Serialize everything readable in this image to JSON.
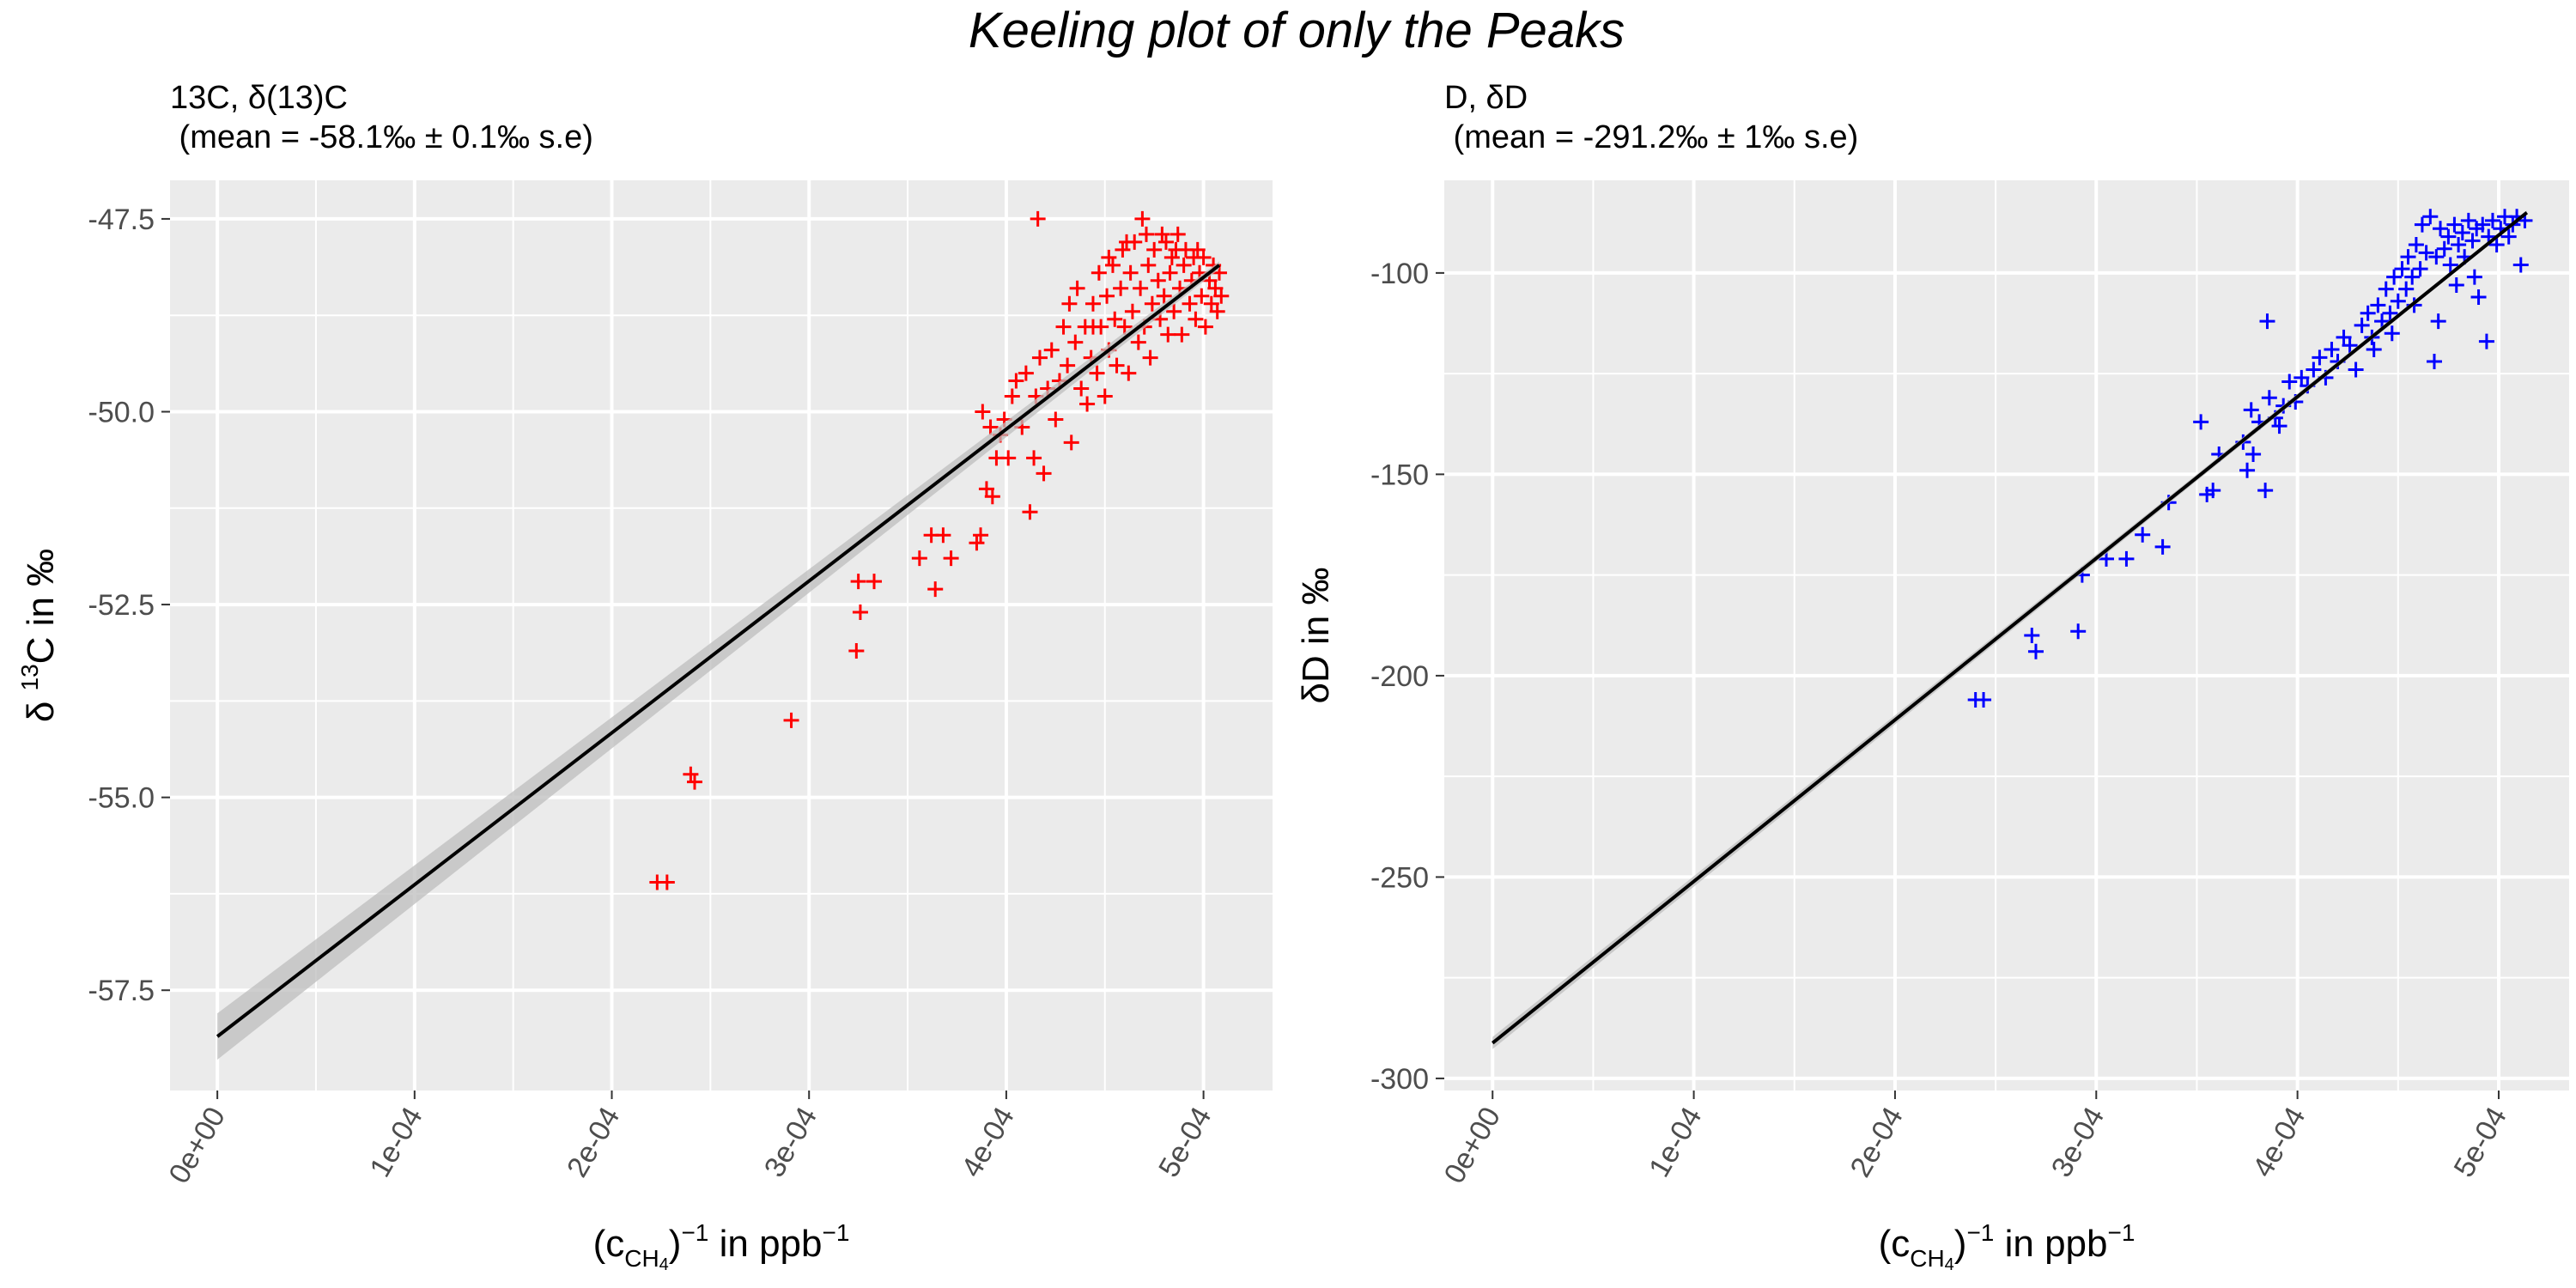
{
  "title": "Keeling plot of only the Peaks",
  "colors": {
    "panel_bg": "#EBEBEB",
    "grid": "#FFFFFF",
    "axis_text": "#4D4D4D",
    "fit_line": "#000000",
    "confidence_band": "#BDBDBD",
    "c13_points": "#FF0000",
    "d_points": "#0000FF"
  },
  "chart_data": [
    {
      "type": "scatter",
      "marker": "plus",
      "subtitle_line1": "13C, δ(13)C",
      "subtitle_line2": " (mean = -58.1‰ ± 0.1‰ s.e)",
      "xlabel": "(cCH4)−1 in ppb−1",
      "ylabel": "δ13C in ‰",
      "xlim": [
        -2.4e-05,
        0.000535
      ],
      "ylim": [
        -58.8,
        -47.0
      ],
      "x_ticks": [
        0,
        0.0001,
        0.0002,
        0.0003,
        0.0004,
        0.0005
      ],
      "x_tick_labels": [
        "0e+00",
        "1e-04",
        "2e-04",
        "3e-04",
        "4e-04",
        "5e-04"
      ],
      "y_ticks": [
        -57.5,
        -55.0,
        -52.5,
        -50.0,
        -47.5
      ],
      "y_tick_labels": [
        "-57.5",
        "-55.0",
        "-52.5",
        "-50.0",
        "-47.5"
      ],
      "grid": true,
      "point_color": "#FF0000",
      "fit": {
        "x": [
          0,
          0.000508
        ],
        "y": [
          -58.1,
          -48.1
        ]
      },
      "band_halfwidth": [
        0.3,
        0.05
      ],
      "points": [
        [
          0.000223,
          -56.1
        ],
        [
          0.000228,
          -56.1
        ],
        [
          0.00024,
          -54.7
        ],
        [
          0.000242,
          -54.8
        ],
        [
          0.000291,
          -54.0
        ],
        [
          0.000324,
          -53.1
        ],
        [
          0.000325,
          -52.2
        ],
        [
          0.000326,
          -52.6
        ],
        [
          0.000333,
          -52.2
        ],
        [
          0.000356,
          -51.9
        ],
        [
          0.000362,
          -51.6
        ],
        [
          0.000364,
          -52.3
        ],
        [
          0.000368,
          -51.6
        ],
        [
          0.000372,
          -51.9
        ],
        [
          0.000385,
          -51.7
        ],
        [
          0.000387,
          -51.6
        ],
        [
          0.00039,
          -51.0
        ],
        [
          0.000393,
          -51.1
        ],
        [
          0.000395,
          -50.6
        ],
        [
          0.000397,
          -50.3
        ],
        [
          0.000388,
          -50.0
        ],
        [
          0.000392,
          -50.2
        ],
        [
          0.000399,
          -50.1
        ],
        [
          0.000401,
          -50.6
        ],
        [
          0.000403,
          -49.8
        ],
        [
          0.000405,
          -49.6
        ],
        [
          0.000408,
          -50.2
        ],
        [
          0.00041,
          -49.5
        ],
        [
          0.000412,
          -51.3
        ],
        [
          0.000414,
          -50.6
        ],
        [
          0.000415,
          -49.8
        ],
        [
          0.000417,
          -49.3
        ],
        [
          0.000416,
          -47.5
        ],
        [
          0.000419,
          -50.8
        ],
        [
          0.000421,
          -49.7
        ],
        [
          0.000423,
          -49.2
        ],
        [
          0.000425,
          -50.1
        ],
        [
          0.000427,
          -49.6
        ],
        [
          0.000429,
          -48.9
        ],
        [
          0.000431,
          -49.4
        ],
        [
          0.000433,
          -50.4
        ],
        [
          0.000435,
          -49.1
        ],
        [
          0.000436,
          -48.4
        ],
        [
          0.000438,
          -49.7
        ],
        [
          0.00044,
          -48.9
        ],
        [
          0.000441,
          -49.9
        ],
        [
          0.000443,
          -49.3
        ],
        [
          0.000444,
          -48.6
        ],
        [
          0.000446,
          -49.5
        ],
        [
          0.000447,
          -48.2
        ],
        [
          0.000448,
          -48.9
        ],
        [
          0.00045,
          -49.8
        ],
        [
          0.000451,
          -48.5
        ],
        [
          0.000452,
          -49.2
        ],
        [
          0.000454,
          -48.1
        ],
        [
          0.000455,
          -48.8
        ],
        [
          0.000456,
          -49.4
        ],
        [
          0.000458,
          -48.4
        ],
        [
          0.000459,
          -47.9
        ],
        [
          0.00046,
          -48.9
        ],
        [
          0.000462,
          -49.5
        ],
        [
          0.000463,
          -48.2
        ],
        [
          0.000464,
          -48.7
        ],
        [
          0.000465,
          -47.8
        ],
        [
          0.000467,
          -49.1
        ],
        [
          0.000468,
          -48.4
        ],
        [
          0.000469,
          -47.5
        ],
        [
          0.00047,
          -48.9
        ],
        [
          0.000472,
          -48.1
        ],
        [
          0.000473,
          -49.3
        ],
        [
          0.000474,
          -48.6
        ],
        [
          0.000475,
          -47.9
        ],
        [
          0.000477,
          -48.3
        ],
        [
          0.000478,
          -48.8
        ],
        [
          0.000479,
          -47.7
        ],
        [
          0.00048,
          -48.5
        ],
        [
          0.000482,
          -49.0
        ],
        [
          0.000483,
          -48.2
        ],
        [
          0.000484,
          -48.0
        ],
        [
          0.000485,
          -48.7
        ],
        [
          0.000486,
          -47.9
        ],
        [
          0.000488,
          -48.4
        ],
        [
          0.000489,
          -49.0
        ],
        [
          0.00049,
          -48.1
        ],
        [
          0.000491,
          -47.9
        ],
        [
          0.000493,
          -48.6
        ],
        [
          0.000494,
          -48.3
        ],
        [
          0.000495,
          -48.0
        ],
        [
          0.000496,
          -48.8
        ],
        [
          0.000498,
          -48.2
        ],
        [
          0.000499,
          -48.5
        ],
        [
          0.0005,
          -48.0
        ],
        [
          0.000501,
          -48.9
        ],
        [
          0.000503,
          -48.3
        ],
        [
          0.000504,
          -48.6
        ],
        [
          0.000505,
          -48.1
        ],
        [
          0.000506,
          -48.4
        ],
        [
          0.000507,
          -48.7
        ],
        [
          0.000508,
          -48.2
        ],
        [
          0.000509,
          -48.5
        ],
        [
          0.000452,
          -48.0
        ],
        [
          0.000461,
          -47.8
        ],
        [
          0.000471,
          -47.7
        ],
        [
          0.000481,
          -47.8
        ],
        [
          0.000487,
          -47.7
        ],
        [
          0.000497,
          -47.9
        ],
        [
          0.000444,
          -48.9
        ],
        [
          0.000432,
          -48.6
        ]
      ]
    },
    {
      "type": "scatter",
      "marker": "plus",
      "subtitle_line1": "D, δD",
      "subtitle_line2": " (mean = -291.2‰ ± 1‰ s.e)",
      "xlabel": "(cCH4)−1 in ppb−1",
      "ylabel": "δD in ‰",
      "xlim": [
        -2.4e-05,
        0.000535
      ],
      "ylim": [
        -303,
        -77
      ],
      "x_ticks": [
        0,
        0.0001,
        0.0002,
        0.0003,
        0.0004,
        0.0005
      ],
      "x_tick_labels": [
        "0e+00",
        "1e-04",
        "2e-04",
        "3e-04",
        "4e-04",
        "5e-04"
      ],
      "y_ticks": [
        -300,
        -250,
        -200,
        -150,
        -100
      ],
      "y_tick_labels": [
        "-300",
        "-250",
        "-200",
        "-150",
        "-100"
      ],
      "grid": true,
      "point_color": "#0000FF",
      "fit": {
        "x": [
          0,
          0.000514
        ],
        "y": [
          -291.2,
          -85
        ]
      },
      "band_halfwidth": [
        1.5,
        0.5
      ],
      "points": [
        [
          0.00024,
          -206
        ],
        [
          0.000244,
          -206
        ],
        [
          0.000268,
          -190
        ],
        [
          0.00027,
          -194
        ],
        [
          0.000291,
          -189
        ],
        [
          0.000293,
          -175
        ],
        [
          0.000305,
          -171
        ],
        [
          0.000315,
          -171
        ],
        [
          0.000323,
          -165
        ],
        [
          0.000333,
          -168
        ],
        [
          0.000336,
          -157
        ],
        [
          0.000352,
          -137
        ],
        [
          0.000355,
          -155
        ],
        [
          0.000358,
          -154
        ],
        [
          0.000361,
          -145
        ],
        [
          0.000373,
          -142
        ],
        [
          0.000375,
          -149
        ],
        [
          0.000377,
          -134
        ],
        [
          0.000378,
          -145
        ],
        [
          0.000381,
          -137
        ],
        [
          0.000384,
          -154
        ],
        [
          0.000385,
          -112
        ],
        [
          0.000386,
          -131
        ],
        [
          0.000389,
          -136
        ],
        [
          0.000391,
          -138
        ],
        [
          0.000393,
          -133
        ],
        [
          0.000396,
          -127
        ],
        [
          0.000399,
          -132
        ],
        [
          0.000402,
          -126
        ],
        [
          0.000405,
          -128
        ],
        [
          0.000408,
          -124
        ],
        [
          0.000411,
          -121
        ],
        [
          0.000414,
          -126
        ],
        [
          0.000417,
          -119
        ],
        [
          0.00042,
          -122
        ],
        [
          0.000423,
          -116
        ],
        [
          0.000426,
          -118
        ],
        [
          0.000429,
          -124
        ],
        [
          0.000432,
          -113
        ],
        [
          0.000435,
          -110
        ],
        [
          0.000437,
          -116
        ],
        [
          0.00044,
          -108
        ],
        [
          0.000442,
          -112
        ],
        [
          0.000444,
          -104
        ],
        [
          0.000446,
          -110
        ],
        [
          0.000448,
          -101
        ],
        [
          0.00045,
          -107
        ],
        [
          0.000452,
          -99
        ],
        [
          0.000454,
          -104
        ],
        [
          0.000455,
          -96
        ],
        [
          0.000457,
          -101
        ],
        [
          0.000459,
          -93
        ],
        [
          0.000461,
          -99
        ],
        [
          0.000462,
          -88
        ],
        [
          0.000464,
          -95
        ],
        [
          0.000466,
          -86
        ],
        [
          0.000468,
          -122
        ],
        [
          0.000469,
          -96
        ],
        [
          0.000471,
          -89
        ],
        [
          0.000473,
          -94
        ],
        [
          0.000475,
          -91
        ],
        [
          0.000476,
          -98
        ],
        [
          0.000478,
          -88
        ],
        [
          0.00048,
          -93
        ],
        [
          0.000482,
          -90
        ],
        [
          0.000483,
          -96
        ],
        [
          0.000485,
          -87
        ],
        [
          0.000487,
          -92
        ],
        [
          0.000489,
          -89
        ],
        [
          0.00049,
          -106
        ],
        [
          0.000492,
          -88
        ],
        [
          0.000494,
          -117
        ],
        [
          0.000495,
          -91
        ],
        [
          0.000497,
          -87
        ],
        [
          0.000499,
          -93
        ],
        [
          0.000501,
          -89
        ],
        [
          0.000503,
          -86
        ],
        [
          0.000505,
          -91
        ],
        [
          0.000507,
          -88
        ],
        [
          0.000509,
          -86
        ],
        [
          0.000511,
          -98
        ],
        [
          0.000513,
          -87
        ],
        [
          0.000488,
          -101
        ],
        [
          0.000479,
          -103
        ],
        [
          0.00047,
          -112
        ],
        [
          0.000458,
          -108
        ],
        [
          0.000447,
          -115
        ],
        [
          0.000438,
          -119
        ]
      ]
    }
  ]
}
